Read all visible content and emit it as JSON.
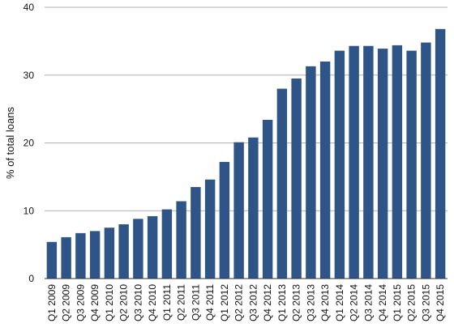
{
  "chart_data": {
    "type": "bar",
    "title": "",
    "xlabel": "",
    "ylabel": "% of total loans",
    "ylim": [
      0,
      40
    ],
    "yticks": [
      0,
      10,
      20,
      30,
      40
    ],
    "grid": "horizontal",
    "bar_color": "#2f5487",
    "categories": [
      "Q1 2009",
      "Q2 2009",
      "Q3 2009",
      "Q4 2009",
      "Q1 2010",
      "Q2 2010",
      "Q3 2010",
      "Q4 2010",
      "Q1 2011",
      "Q2 2011",
      "Q3 2011",
      "Q4 2011",
      "Q1 2012",
      "Q2 2012",
      "Q3 2012",
      "Q4 2012",
      "Q1 2013",
      "Q2 2013",
      "Q3 2013",
      "Q4 2013",
      "Q1 2014",
      "Q2 2014",
      "Q3 2014",
      "Q4 2014",
      "Q1 2015",
      "Q2 2015",
      "Q3 2015",
      "Q4 2015"
    ],
    "values": [
      5.4,
      6.1,
      6.7,
      7.0,
      7.5,
      8.0,
      8.8,
      9.2,
      10.2,
      11.4,
      13.5,
      14.6,
      17.2,
      20.1,
      20.8,
      23.4,
      28.0,
      29.5,
      31.3,
      32.0,
      33.6,
      34.3,
      34.3,
      33.9,
      34.4,
      33.6,
      34.8,
      36.8
    ]
  }
}
